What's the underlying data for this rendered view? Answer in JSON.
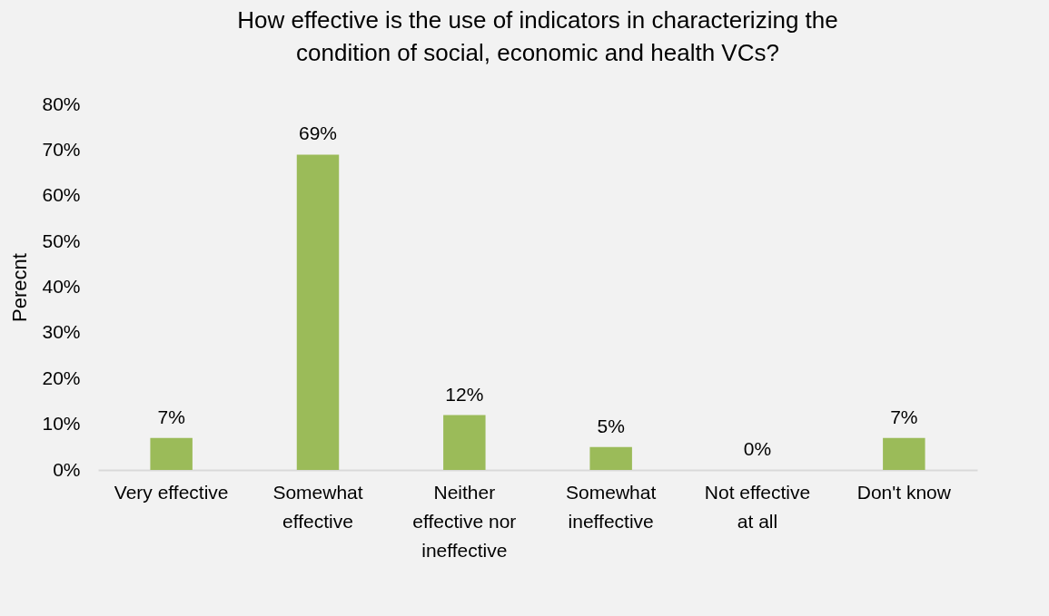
{
  "chart_data": {
    "type": "bar",
    "title": "How effective is the use of indicators in characterizing the condition of social, economic and health VCs?",
    "ylabel": "Perecnt",
    "categories": [
      "Very effective",
      "Somewhat effective",
      "Neither effective nor ineffective",
      "Somewhat ineffective",
      "Not effective at all",
      "Don't know"
    ],
    "values": [
      7,
      69,
      12,
      5,
      0,
      7
    ],
    "value_labels": [
      "7%",
      "69%",
      "12%",
      "5%",
      "0%",
      "7%"
    ],
    "color": "#9bbb59",
    "ylim": [
      0,
      80
    ],
    "yticks": [
      {
        "value": 0,
        "label": "0%"
      },
      {
        "value": 10,
        "label": "10%"
      },
      {
        "value": 20,
        "label": "20%"
      },
      {
        "value": 30,
        "label": "30%"
      },
      {
        "value": 40,
        "label": "40%"
      },
      {
        "value": 50,
        "label": "50%"
      },
      {
        "value": 60,
        "label": "60%"
      },
      {
        "value": 70,
        "label": "70%"
      },
      {
        "value": 80,
        "label": "80%"
      }
    ],
    "grid": false
  }
}
